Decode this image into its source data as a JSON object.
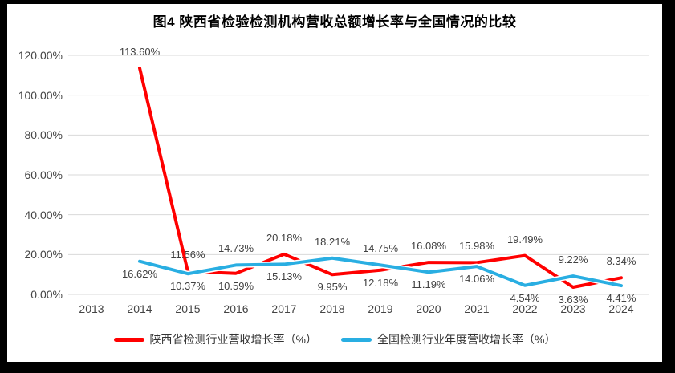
{
  "frame": {
    "background": "#000000",
    "canvas_background": "#ffffff"
  },
  "colors": {
    "grid": "#D9D9D9",
    "axis_text": "#444444",
    "data_label_text": "#404040",
    "title_text": "#000000",
    "shaanxi_red": "#FF0000",
    "national_blue": "#29AEE2"
  },
  "chart_data": {
    "type": "line",
    "title": "图4 陕西省检验检测机构营收总额增长率与全国情况的比较",
    "xlabel": "",
    "ylabel": "",
    "ylim": [
      0,
      120
    ],
    "grid": "horizontal",
    "legend_position": "bottom",
    "categories": [
      "2013",
      "2014",
      "2015",
      "2016",
      "2017",
      "2018",
      "2019",
      "2020",
      "2021",
      "2022",
      "2023",
      "2024"
    ],
    "yticks": [
      {
        "value": 0,
        "label": "0.00%"
      },
      {
        "value": 20,
        "label": "20.00%"
      },
      {
        "value": 40,
        "label": "40.00%"
      },
      {
        "value": 60,
        "label": "60.00%"
      },
      {
        "value": 80,
        "label": "80.00%"
      },
      {
        "value": 100,
        "label": "100.00%"
      },
      {
        "value": 120,
        "label": "120.00%"
      }
    ],
    "series": [
      {
        "key": "shaanxi",
        "name": "陕西省检测行业营收增长率（%）",
        "color": "#FF0000",
        "points": [
          {
            "category": "2013",
            "value": null
          },
          {
            "category": "2014",
            "value": 113.6,
            "label": "113.60%",
            "label_side": "above"
          },
          {
            "category": "2015",
            "value": 11.56,
            "label": "11.56%",
            "label_side": "above"
          },
          {
            "category": "2016",
            "value": 10.59,
            "label": "10.59%",
            "label_side": "below"
          },
          {
            "category": "2017",
            "value": 20.18,
            "label": "20.18%",
            "label_side": "above"
          },
          {
            "category": "2018",
            "value": 9.95,
            "label": "9.95%",
            "label_side": "below"
          },
          {
            "category": "2019",
            "value": 12.18,
            "label": "12.18%",
            "label_side": "below"
          },
          {
            "category": "2020",
            "value": 16.08,
            "label": "16.08%",
            "label_side": "above"
          },
          {
            "category": "2021",
            "value": 15.98,
            "label": "15.98%",
            "label_side": "above"
          },
          {
            "category": "2022",
            "value": 19.49,
            "label": "19.49%",
            "label_side": "above"
          },
          {
            "category": "2023",
            "value": 3.63,
            "label": "3.63%",
            "label_side": "below"
          },
          {
            "category": "2024",
            "value": 8.34,
            "label": "8.34%",
            "label_side": "above"
          }
        ]
      },
      {
        "key": "national",
        "name": "全国检测行业年度营收增长率（%）",
        "color": "#29AEE2",
        "points": [
          {
            "category": "2013",
            "value": null
          },
          {
            "category": "2014",
            "value": 16.62,
            "label": "16.62%",
            "label_side": "below"
          },
          {
            "category": "2015",
            "value": 10.37,
            "label": "10.37%",
            "label_side": "below"
          },
          {
            "category": "2016",
            "value": 14.73,
            "label": "14.73%",
            "label_side": "above"
          },
          {
            "category": "2017",
            "value": 15.13,
            "label": "15.13%",
            "label_side": "below"
          },
          {
            "category": "2018",
            "value": 18.21,
            "label": "18.21%",
            "label_side": "above"
          },
          {
            "category": "2019",
            "value": 14.75,
            "label": "14.75%",
            "label_side": "above"
          },
          {
            "category": "2020",
            "value": 11.19,
            "label": "11.19%",
            "label_side": "below"
          },
          {
            "category": "2021",
            "value": 14.06,
            "label": "14.06%",
            "label_side": "below"
          },
          {
            "category": "2022",
            "value": 4.54,
            "label": "4.54%",
            "label_side": "below"
          },
          {
            "category": "2023",
            "value": 9.22,
            "label": "9.22%",
            "label_side": "above"
          },
          {
            "category": "2024",
            "value": 4.41,
            "label": "4.41%",
            "label_side": "below"
          }
        ]
      }
    ]
  }
}
